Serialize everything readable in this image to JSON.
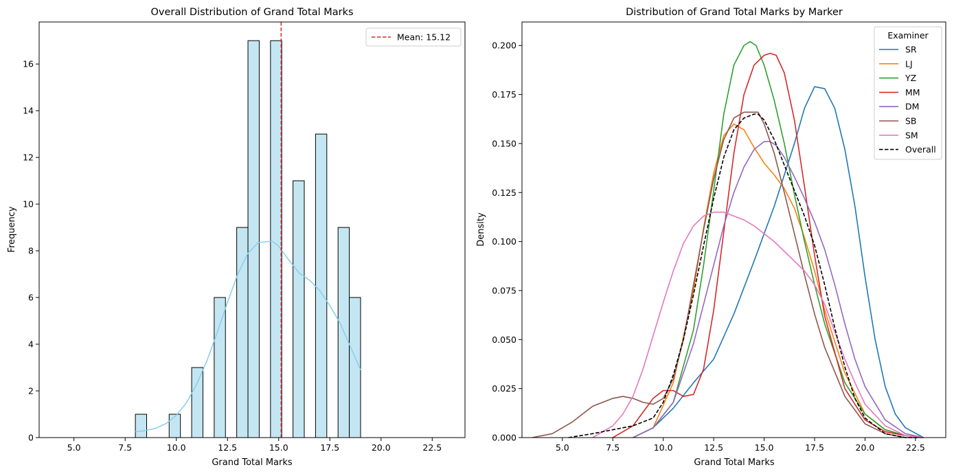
{
  "chart_data": [
    {
      "type": "bar",
      "title": "Overall Distribution of Grand Total Marks",
      "xlabel": "Grand Total Marks",
      "ylabel": "Frequency",
      "xlim": [
        3.3,
        24.1
      ],
      "ylim": [
        0,
        17.8
      ],
      "xticks": [
        5.0,
        7.5,
        10.0,
        12.5,
        15.0,
        17.5,
        20.0,
        22.5
      ],
      "xtick_labels": [
        "5.0",
        "7.5",
        "10.0",
        "12.5",
        "15.0",
        "17.5",
        "20.0",
        "22.5"
      ],
      "yticks": [
        0,
        2,
        4,
        6,
        8,
        10,
        12,
        14,
        16
      ],
      "ytick_labels": [
        "0",
        "2",
        "4",
        "6",
        "8",
        "10",
        "12",
        "14",
        "16"
      ],
      "bar_width": 0.55,
      "bars": [
        {
          "x0": 8.0,
          "value": 1
        },
        {
          "x0": 9.65,
          "value": 1
        },
        {
          "x0": 10.75,
          "value": 3
        },
        {
          "x0": 11.85,
          "value": 6
        },
        {
          "x0": 12.95,
          "value": 9
        },
        {
          "x0": 13.5,
          "value": 17
        },
        {
          "x0": 14.6,
          "value": 17
        },
        {
          "x0": 15.7,
          "value": 11
        },
        {
          "x0": 16.8,
          "value": 13
        },
        {
          "x0": 17.9,
          "value": 9
        },
        {
          "x0": 18.45,
          "value": 6
        }
      ],
      "kde": {
        "x": [
          8.0,
          8.5,
          9.0,
          9.5,
          10.0,
          10.5,
          11.0,
          11.5,
          12.0,
          12.5,
          13.0,
          13.5,
          14.0,
          14.5,
          14.7,
          15.0,
          15.5,
          16.0,
          16.5,
          17.0,
          17.5,
          18.0,
          18.5,
          19.0
        ],
        "y": [
          0.25,
          0.3,
          0.4,
          0.6,
          0.95,
          1.5,
          2.3,
          3.3,
          4.5,
          5.8,
          7.0,
          7.9,
          8.35,
          8.4,
          8.4,
          8.2,
          7.6,
          7.05,
          6.75,
          6.3,
          5.65,
          4.9,
          3.9,
          2.9
        ]
      },
      "mean_line": {
        "value": 15.12,
        "label": "Mean: 15.12",
        "color": "#d62728"
      },
      "bar_color": "#c4e6f2",
      "kde_color": "#87ceeb",
      "legend_position": "upper right"
    },
    {
      "type": "line",
      "title": "Distribution of Grand Total Marks by Marker",
      "xlabel": "Grand Total Marks",
      "ylabel": "Density",
      "xlim": [
        3.0,
        24.0
      ],
      "ylim": [
        0,
        0.212
      ],
      "xticks": [
        5.0,
        7.5,
        10.0,
        12.5,
        15.0,
        17.5,
        20.0,
        22.5
      ],
      "xtick_labels": [
        "5.0",
        "7.5",
        "10.0",
        "12.5",
        "15.0",
        "17.5",
        "20.0",
        "22.5"
      ],
      "yticks": [
        0.0,
        0.025,
        0.05,
        0.075,
        0.1,
        0.125,
        0.15,
        0.175,
        0.2
      ],
      "ytick_labels": [
        "0.000",
        "0.025",
        "0.050",
        "0.075",
        "0.100",
        "0.125",
        "0.150",
        "0.175",
        "0.200"
      ],
      "legend_title": "Examiner",
      "legend_position": "upper right",
      "series": [
        {
          "name": "SR",
          "color": "#1f77b4",
          "dashed": false,
          "x": [
            8.5,
            9.5,
            10.5,
            11.5,
            12.5,
            13.5,
            14.5,
            15.5,
            16.5,
            17.0,
            17.5,
            18.0,
            18.5,
            19.0,
            19.5,
            20.0,
            20.5,
            21.0,
            21.5,
            22.0,
            22.9
          ],
          "y": [
            0.0,
            0.005,
            0.015,
            0.028,
            0.04,
            0.063,
            0.09,
            0.118,
            0.15,
            0.168,
            0.179,
            0.178,
            0.168,
            0.147,
            0.118,
            0.082,
            0.05,
            0.026,
            0.012,
            0.005,
            0.0
          ]
        },
        {
          "name": "LJ",
          "color": "#ff7f0e",
          "dashed": false,
          "x": [
            8.5,
            9.5,
            10.5,
            11.5,
            12.0,
            12.5,
            13.0,
            13.5,
            14.0,
            14.5,
            15.0,
            15.5,
            16.0,
            16.5,
            17.0,
            17.5,
            18.0,
            19.0,
            20.0,
            21.0,
            22.0,
            22.9
          ],
          "y": [
            0.0,
            0.005,
            0.028,
            0.075,
            0.107,
            0.135,
            0.154,
            0.16,
            0.157,
            0.148,
            0.14,
            0.134,
            0.127,
            0.117,
            0.102,
            0.085,
            0.065,
            0.033,
            0.012,
            0.004,
            0.001,
            0.0
          ]
        },
        {
          "name": "YZ",
          "color": "#2ca02c",
          "dashed": false,
          "x": [
            8.5,
            9.5,
            10.5,
            11.5,
            12.0,
            12.5,
            13.0,
            13.5,
            14.0,
            14.3,
            14.6,
            15.0,
            15.5,
            16.0,
            16.5,
            17.0,
            17.5,
            18.0,
            19.0,
            20.0,
            21.0,
            22.0,
            22.9
          ],
          "y": [
            0.0,
            0.005,
            0.018,
            0.055,
            0.088,
            0.126,
            0.165,
            0.19,
            0.2,
            0.202,
            0.2,
            0.19,
            0.172,
            0.15,
            0.124,
            0.1,
            0.078,
            0.058,
            0.028,
            0.012,
            0.004,
            0.001,
            0.0
          ]
        },
        {
          "name": "MM",
          "color": "#d62728",
          "dashed": false,
          "x": [
            7.5,
            8.5,
            9.5,
            10.0,
            10.5,
            11.0,
            11.5,
            12.0,
            12.5,
            13.0,
            13.5,
            14.0,
            14.5,
            15.0,
            15.3,
            15.6,
            16.0,
            16.5,
            17.0,
            17.5,
            18.0,
            19.0,
            20.0,
            21.0,
            22.0,
            22.9
          ],
          "y": [
            0.0,
            0.006,
            0.02,
            0.024,
            0.024,
            0.021,
            0.022,
            0.035,
            0.065,
            0.105,
            0.145,
            0.175,
            0.19,
            0.195,
            0.196,
            0.195,
            0.186,
            0.162,
            0.128,
            0.093,
            0.062,
            0.025,
            0.009,
            0.003,
            0.001,
            0.0
          ]
        },
        {
          "name": "DM",
          "color": "#9467bd",
          "dashed": false,
          "x": [
            8.5,
            9.5,
            10.5,
            11.5,
            12.5,
            13.0,
            13.5,
            14.0,
            14.5,
            15.0,
            15.3,
            15.6,
            16.0,
            16.5,
            17.0,
            17.5,
            18.0,
            18.5,
            19.0,
            19.5,
            20.0,
            21.0,
            22.0,
            22.9
          ],
          "y": [
            0.0,
            0.005,
            0.018,
            0.048,
            0.088,
            0.108,
            0.125,
            0.138,
            0.147,
            0.151,
            0.151,
            0.149,
            0.143,
            0.133,
            0.122,
            0.11,
            0.096,
            0.078,
            0.058,
            0.04,
            0.026,
            0.009,
            0.002,
            0.0
          ]
        },
        {
          "name": "SB",
          "color": "#8c564b",
          "dashed": false,
          "x": [
            3.5,
            4.5,
            5.5,
            6.5,
            7.5,
            8.0,
            8.5,
            9.0,
            9.5,
            10.0,
            10.5,
            11.0,
            11.5,
            12.0,
            12.5,
            13.0,
            13.5,
            14.0,
            14.5,
            14.7,
            15.0,
            15.5,
            16.0,
            16.5,
            17.0,
            17.5,
            18.0,
            19.0,
            20.0,
            21.0,
            22.0,
            22.9
          ],
          "y": [
            0.0,
            0.002,
            0.008,
            0.016,
            0.02,
            0.021,
            0.02,
            0.018,
            0.017,
            0.02,
            0.03,
            0.05,
            0.078,
            0.106,
            0.132,
            0.152,
            0.163,
            0.166,
            0.166,
            0.166,
            0.16,
            0.145,
            0.125,
            0.104,
            0.083,
            0.063,
            0.046,
            0.021,
            0.007,
            0.002,
            0.0,
            0.0
          ]
        },
        {
          "name": "SM",
          "color": "#e377c2",
          "dashed": false,
          "x": [
            6.5,
            7.5,
            8.0,
            8.5,
            9.0,
            9.5,
            10.0,
            10.5,
            11.0,
            11.5,
            12.0,
            12.5,
            13.0,
            13.5,
            14.0,
            14.5,
            15.0,
            15.5,
            16.0,
            16.5,
            17.0,
            17.5,
            18.0,
            18.5,
            19.0,
            19.5,
            20.0,
            21.0,
            22.0,
            22.9
          ],
          "y": [
            0.0,
            0.006,
            0.012,
            0.021,
            0.035,
            0.052,
            0.069,
            0.085,
            0.099,
            0.108,
            0.113,
            0.115,
            0.115,
            0.113,
            0.111,
            0.108,
            0.104,
            0.1,
            0.095,
            0.09,
            0.085,
            0.078,
            0.068,
            0.054,
            0.04,
            0.028,
            0.017,
            0.006,
            0.001,
            0.0
          ]
        },
        {
          "name": "Overall",
          "color": "#000000",
          "dashed": true,
          "x": [
            5.3,
            6.5,
            7.5,
            8.5,
            9.5,
            10.0,
            10.5,
            11.0,
            11.5,
            12.0,
            12.5,
            13.0,
            13.5,
            14.0,
            14.5,
            14.7,
            15.0,
            15.5,
            16.0,
            16.5,
            17.0,
            17.5,
            18.0,
            18.5,
            19.0,
            19.5,
            20.0,
            21.0,
            22.0,
            22.6
          ],
          "y": [
            0.0,
            0.002,
            0.004,
            0.006,
            0.01,
            0.018,
            0.032,
            0.05,
            0.073,
            0.098,
            0.122,
            0.143,
            0.157,
            0.163,
            0.165,
            0.165,
            0.162,
            0.152,
            0.139,
            0.126,
            0.113,
            0.098,
            0.078,
            0.056,
            0.036,
            0.02,
            0.01,
            0.002,
            0.0,
            0.0
          ]
        }
      ]
    }
  ]
}
